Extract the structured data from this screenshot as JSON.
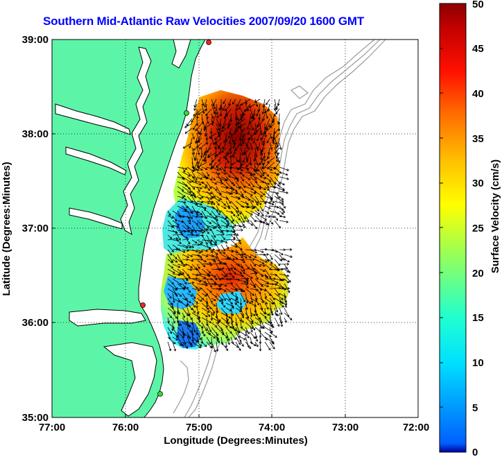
{
  "title": "Southern Mid-Atlantic Raw Velocities 2007/09/20 1600 GMT",
  "map": {
    "xlabel": "Longitude (Degrees:Minutes)",
    "ylabel": "Latitude (Degrees:Minutes)",
    "lon_ticks": [
      "77:00",
      "76:00",
      "75:00",
      "74:00",
      "73:00",
      "72:00"
    ],
    "lat_ticks": [
      "39:00",
      "38:00",
      "37:00",
      "36:00",
      "35:00"
    ],
    "land_color": "#5cf5a8",
    "coast_color": "#000000",
    "bathymetry_color": "#9a9a9a",
    "grid": "dotted",
    "stations": [
      {
        "name": "station-north",
        "color": "#ff2020"
      },
      {
        "name": "station-assateague",
        "color": "#33dd33"
      },
      {
        "name": "station-duck",
        "color": "#ff2020"
      },
      {
        "name": "station-hatteras",
        "color": "#33dd33"
      }
    ]
  },
  "colorbar": {
    "label": "Surface Velocity (cm/s)",
    "ticks": [
      "0",
      "5",
      "10",
      "15",
      "20",
      "25",
      "30",
      "35",
      "40",
      "45",
      "50"
    ],
    "min": 0,
    "max": 50,
    "colormap": "jet"
  }
}
